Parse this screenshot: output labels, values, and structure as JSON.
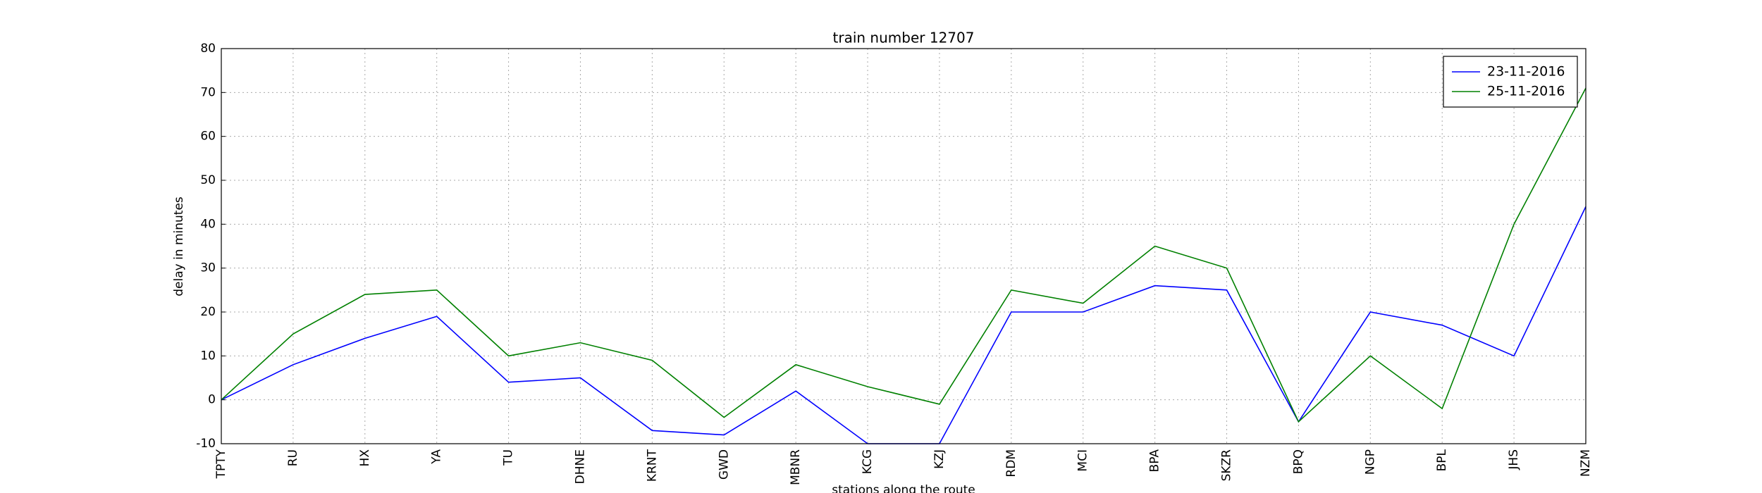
{
  "chart_data": {
    "type": "line",
    "title": "train number 12707",
    "x_label": "stations along the route",
    "y_label": "delay in minutes",
    "categories": [
      "TPTY",
      "RU",
      "HX",
      "YA",
      "TU",
      "DHNE",
      "KRNT",
      "GWD",
      "MBNR",
      "KCG",
      "KZJ",
      "RDM",
      "MCI",
      "BPA",
      "SKZR",
      "BPQ",
      "NGP",
      "BPL",
      "JHS",
      "NZM"
    ],
    "series": [
      {
        "name": "23-11-2016",
        "color": "#0000ff",
        "values": [
          0,
          8,
          14,
          19,
          4,
          5,
          -7,
          -8,
          2,
          -10,
          -10,
          20,
          20,
          26,
          25,
          -5,
          20,
          17,
          10,
          44
        ]
      },
      {
        "name": "25-11-2016",
        "color": "#008000",
        "values": [
          0,
          15,
          24,
          25,
          10,
          13,
          9,
          -4,
          8,
          3,
          -1,
          25,
          22,
          35,
          30,
          -5,
          10,
          -2,
          40,
          71
        ]
      }
    ],
    "ylim": [
      -10,
      80
    ],
    "yticks": [
      -10,
      0,
      10,
      20,
      30,
      40,
      50,
      60,
      70,
      80
    ],
    "grid": true,
    "legend": "upper right"
  }
}
